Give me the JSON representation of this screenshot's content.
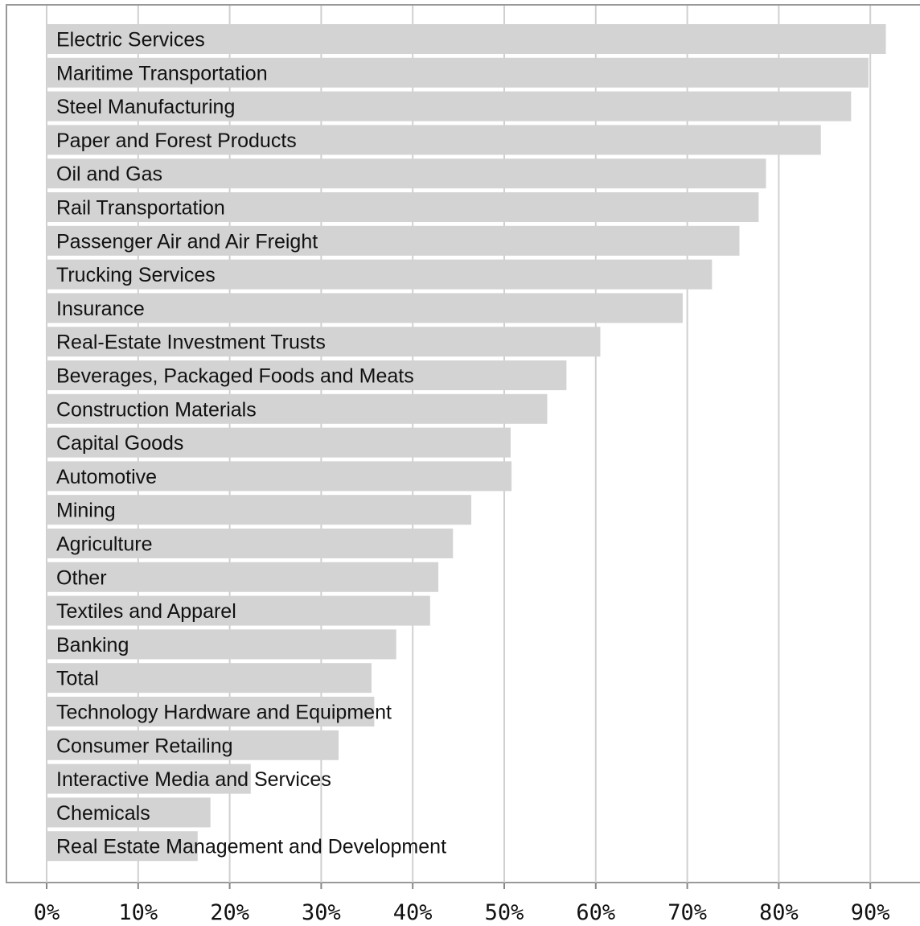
{
  "chart_data": {
    "type": "bar",
    "orientation": "horizontal",
    "categories": [
      "Electric Services",
      "Maritime Transportation",
      "Steel Manufacturing",
      "Paper and Forest Products",
      "Oil and Gas",
      "Rail Transportation",
      "Passenger Air and Air Freight",
      "Trucking Services",
      "Insurance",
      "Real-Estate Investment Trusts",
      "Beverages, Packaged Foods and Meats",
      "Construction Materials",
      "Capital Goods",
      "Automotive",
      "Mining",
      "Agriculture",
      "Other",
      "Textiles and Apparel",
      "Banking",
      "Total",
      "Technology Hardware and Equipment",
      "Consumer Retailing",
      "Interactive Media and Services",
      "Chemicals",
      "Real Estate Management and Development"
    ],
    "values": [
      91.7,
      89.8,
      87.9,
      84.6,
      78.6,
      77.8,
      75.7,
      72.7,
      69.5,
      60.5,
      56.8,
      54.7,
      50.7,
      50.8,
      46.4,
      44.4,
      42.8,
      41.9,
      38.2,
      35.5,
      35.8,
      31.9,
      22.3,
      17.9,
      16.5
    ],
    "title": "",
    "xlabel": "",
    "ylabel": "",
    "xlim": [
      0,
      95.6
    ],
    "xticks": [
      0,
      10,
      20,
      30,
      40,
      50,
      60,
      70,
      80,
      90
    ],
    "xtick_labels": [
      "0%",
      "10%",
      "20%",
      "30%",
      "40%",
      "50%",
      "60%",
      "70%",
      "80%",
      "90%"
    ],
    "grid": "vertical",
    "legend": "none",
    "colors": {
      "bar": "#d3d3d3",
      "grid": "#d0d0d0",
      "frame": "#999999",
      "text": "#111111"
    }
  }
}
